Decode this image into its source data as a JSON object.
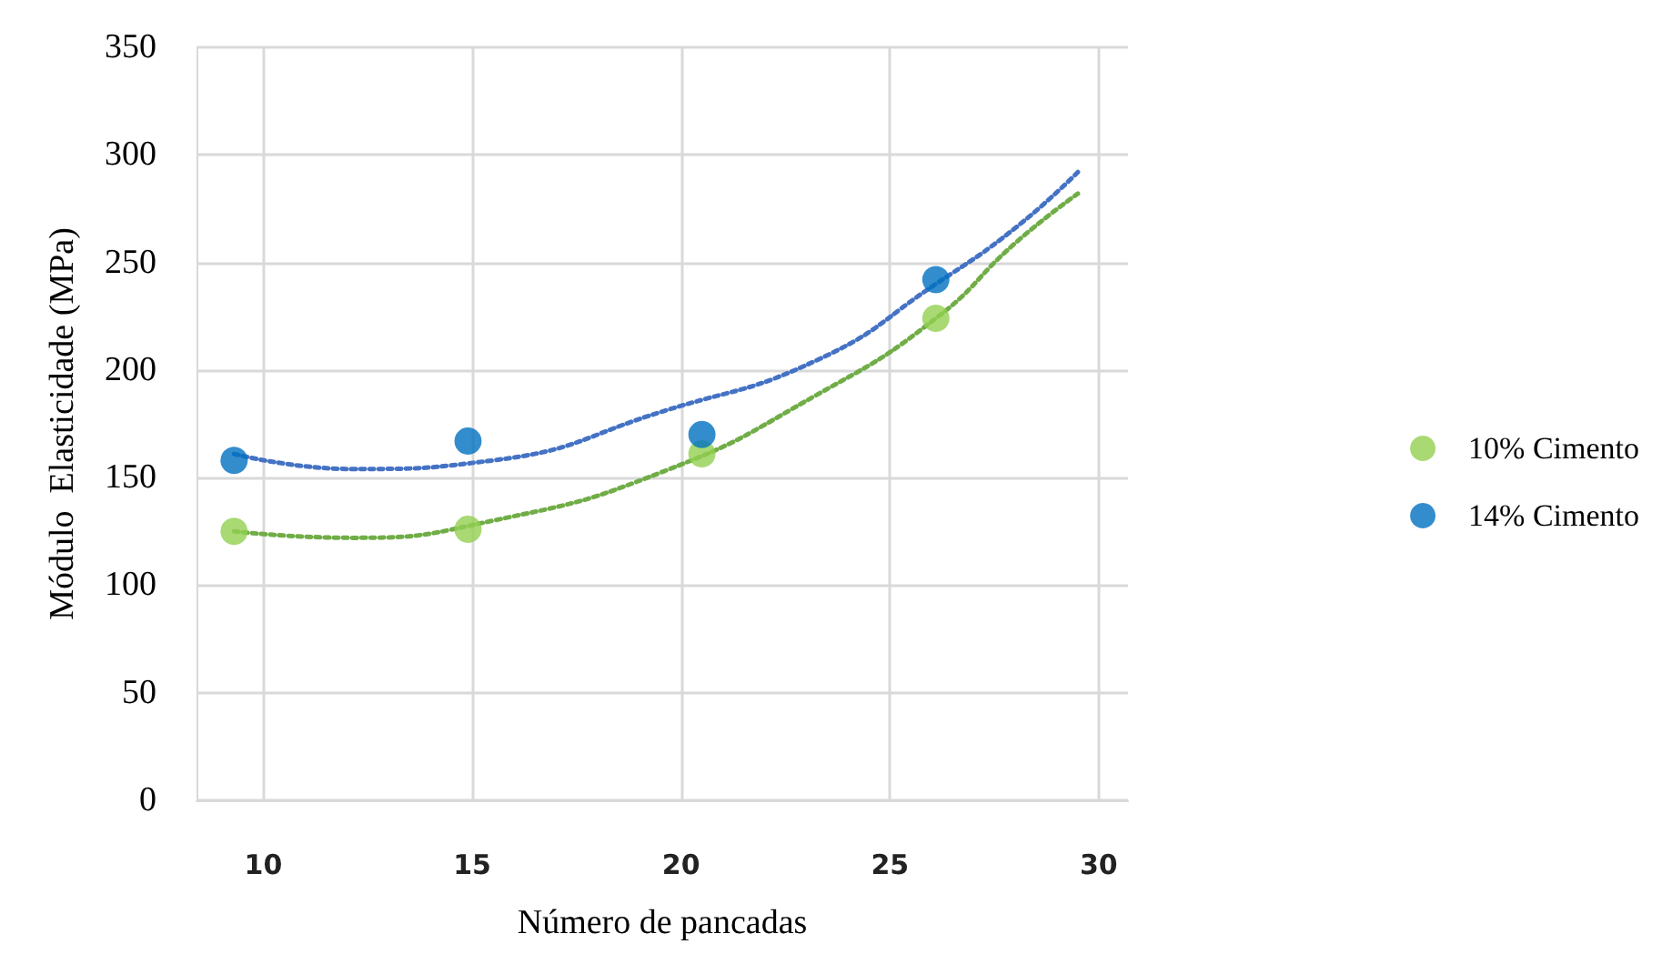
{
  "chart_data": {
    "type": "scatter",
    "xlabel": "Número de pancadas",
    "ylabel": "Módulo  Elasticidade (MPa)",
    "xlim": [
      8.4,
      30.7
    ],
    "xticks": [
      10,
      15,
      20,
      25,
      30
    ],
    "ylim": [
      0,
      350
    ],
    "yticks": [
      0,
      50,
      100,
      150,
      200,
      250,
      300,
      350
    ],
    "grid": true,
    "legend": "right",
    "marker": "circle",
    "series": [
      {
        "name": "10% Cimento",
        "color": "#92d050",
        "x": [
          9.3,
          14.9,
          20.5,
          26.1
        ],
        "values": [
          125,
          126,
          161,
          224
        ]
      },
      {
        "name": "14% Cimento",
        "color": "#0070c0",
        "x": [
          9.3,
          14.9,
          20.5,
          26.1
        ],
        "values": [
          158,
          167,
          170,
          242
        ]
      },
      {
        "type": "line",
        "color": "#70ad47",
        "marker": "none",
        "line_style": "dotted",
        "x": [
          9.3,
          12.1,
          15.5,
          19.6,
          23.3,
          26.1,
          28,
          29.5
        ],
        "values": [
          125,
          122,
          130,
          153,
          189,
          224,
          259,
          282
        ]
      },
      {
        "type": "line",
        "color": "#4472c4",
        "marker": "none",
        "line_style": "dotted",
        "x": [
          9.3,
          12.1,
          15.5,
          19.6,
          23.3,
          26.1,
          28,
          29.5
        ],
        "values": [
          161,
          154,
          158,
          181,
          205,
          240,
          266,
          292
        ]
      }
    ]
  }
}
